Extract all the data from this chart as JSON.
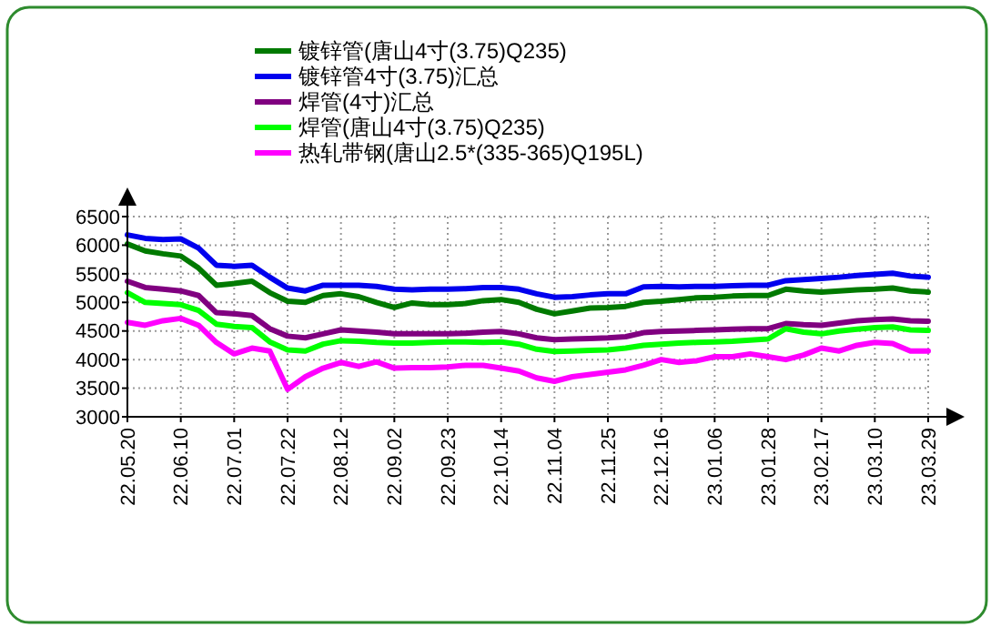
{
  "chart_data": {
    "type": "line",
    "categories": [
      "22.05.20",
      null,
      null,
      "22.06.10",
      null,
      null,
      "22.07.01",
      null,
      null,
      "22.07.22",
      null,
      null,
      "22.08.12",
      null,
      null,
      "22.09.02",
      null,
      null,
      "22.09.23",
      null,
      null,
      "22.10.14",
      null,
      null,
      "22.11.04",
      null,
      null,
      "22.11.25",
      null,
      null,
      "22.12.16",
      null,
      null,
      "23.01.06",
      null,
      null,
      "23.01.28",
      null,
      null,
      "23.02.17",
      null,
      null,
      "23.03.10",
      null,
      null,
      "23.03.29"
    ],
    "ylim": [
      3000,
      6500
    ],
    "yticks": [
      3000,
      3500,
      4000,
      4500,
      5000,
      5500,
      6000,
      6500
    ],
    "grid": true,
    "legend": "top",
    "marker": "none",
    "line_style": "solid",
    "series": [
      {
        "name": "镀锌管(唐山4寸(3.75)Q235)",
        "color": "#007a00",
        "values": [
          6020,
          5900,
          5850,
          5810,
          5600,
          5300,
          5330,
          5370,
          5170,
          5020,
          5000,
          5120,
          5150,
          5100,
          5000,
          4910,
          4990,
          4960,
          4960,
          4980,
          5030,
          5050,
          5000,
          4880,
          4800,
          4850,
          4900,
          4910,
          4930,
          5000,
          5020,
          5050,
          5080,
          5090,
          5110,
          5120,
          5120,
          5230,
          5200,
          5180,
          5200,
          5220,
          5230,
          5250,
          5200,
          5180
        ]
      },
      {
        "name": "镀锌管4寸(3.75)汇总",
        "color": "#0000ee",
        "values": [
          6180,
          6120,
          6100,
          6110,
          5950,
          5650,
          5630,
          5650,
          5440,
          5250,
          5200,
          5300,
          5300,
          5300,
          5280,
          5230,
          5220,
          5230,
          5230,
          5240,
          5260,
          5260,
          5230,
          5150,
          5090,
          5100,
          5130,
          5150,
          5150,
          5270,
          5280,
          5270,
          5280,
          5280,
          5290,
          5300,
          5300,
          5380,
          5400,
          5420,
          5440,
          5470,
          5490,
          5510,
          5460,
          5440
        ]
      },
      {
        "name": "焊管(4寸)汇总",
        "color": "#800080",
        "values": [
          5370,
          5260,
          5230,
          5200,
          5120,
          4820,
          4800,
          4770,
          4540,
          4410,
          4380,
          4450,
          4520,
          4500,
          4480,
          4450,
          4450,
          4450,
          4450,
          4460,
          4480,
          4490,
          4450,
          4380,
          4350,
          4360,
          4370,
          4380,
          4400,
          4470,
          4490,
          4500,
          4510,
          4520,
          4530,
          4540,
          4540,
          4630,
          4610,
          4600,
          4640,
          4680,
          4700,
          4710,
          4680,
          4670
        ]
      },
      {
        "name": "焊管(唐山4寸(3.75)Q235)",
        "color": "#00ff00",
        "values": [
          5170,
          5000,
          4980,
          4960,
          4860,
          4620,
          4580,
          4560,
          4310,
          4170,
          4150,
          4270,
          4330,
          4320,
          4300,
          4290,
          4290,
          4300,
          4310,
          4310,
          4300,
          4310,
          4270,
          4180,
          4140,
          4150,
          4160,
          4170,
          4200,
          4250,
          4270,
          4290,
          4300,
          4310,
          4320,
          4340,
          4360,
          4540,
          4480,
          4450,
          4500,
          4530,
          4560,
          4570,
          4520,
          4510
        ]
      },
      {
        "name": "热轧带钢(唐山2.5*(335-365)Q195L)",
        "color": "#ff00ff",
        "values": [
          4650,
          4600,
          4680,
          4720,
          4600,
          4300,
          4100,
          4200,
          4150,
          3480,
          3700,
          3850,
          3950,
          3880,
          3960,
          3850,
          3860,
          3860,
          3870,
          3900,
          3900,
          3850,
          3800,
          3680,
          3620,
          3700,
          3740,
          3780,
          3820,
          3900,
          4000,
          3950,
          3980,
          4050,
          4050,
          4100,
          4050,
          4000,
          4080,
          4200,
          4150,
          4250,
          4300,
          4280,
          4150,
          4150
        ]
      }
    ]
  }
}
